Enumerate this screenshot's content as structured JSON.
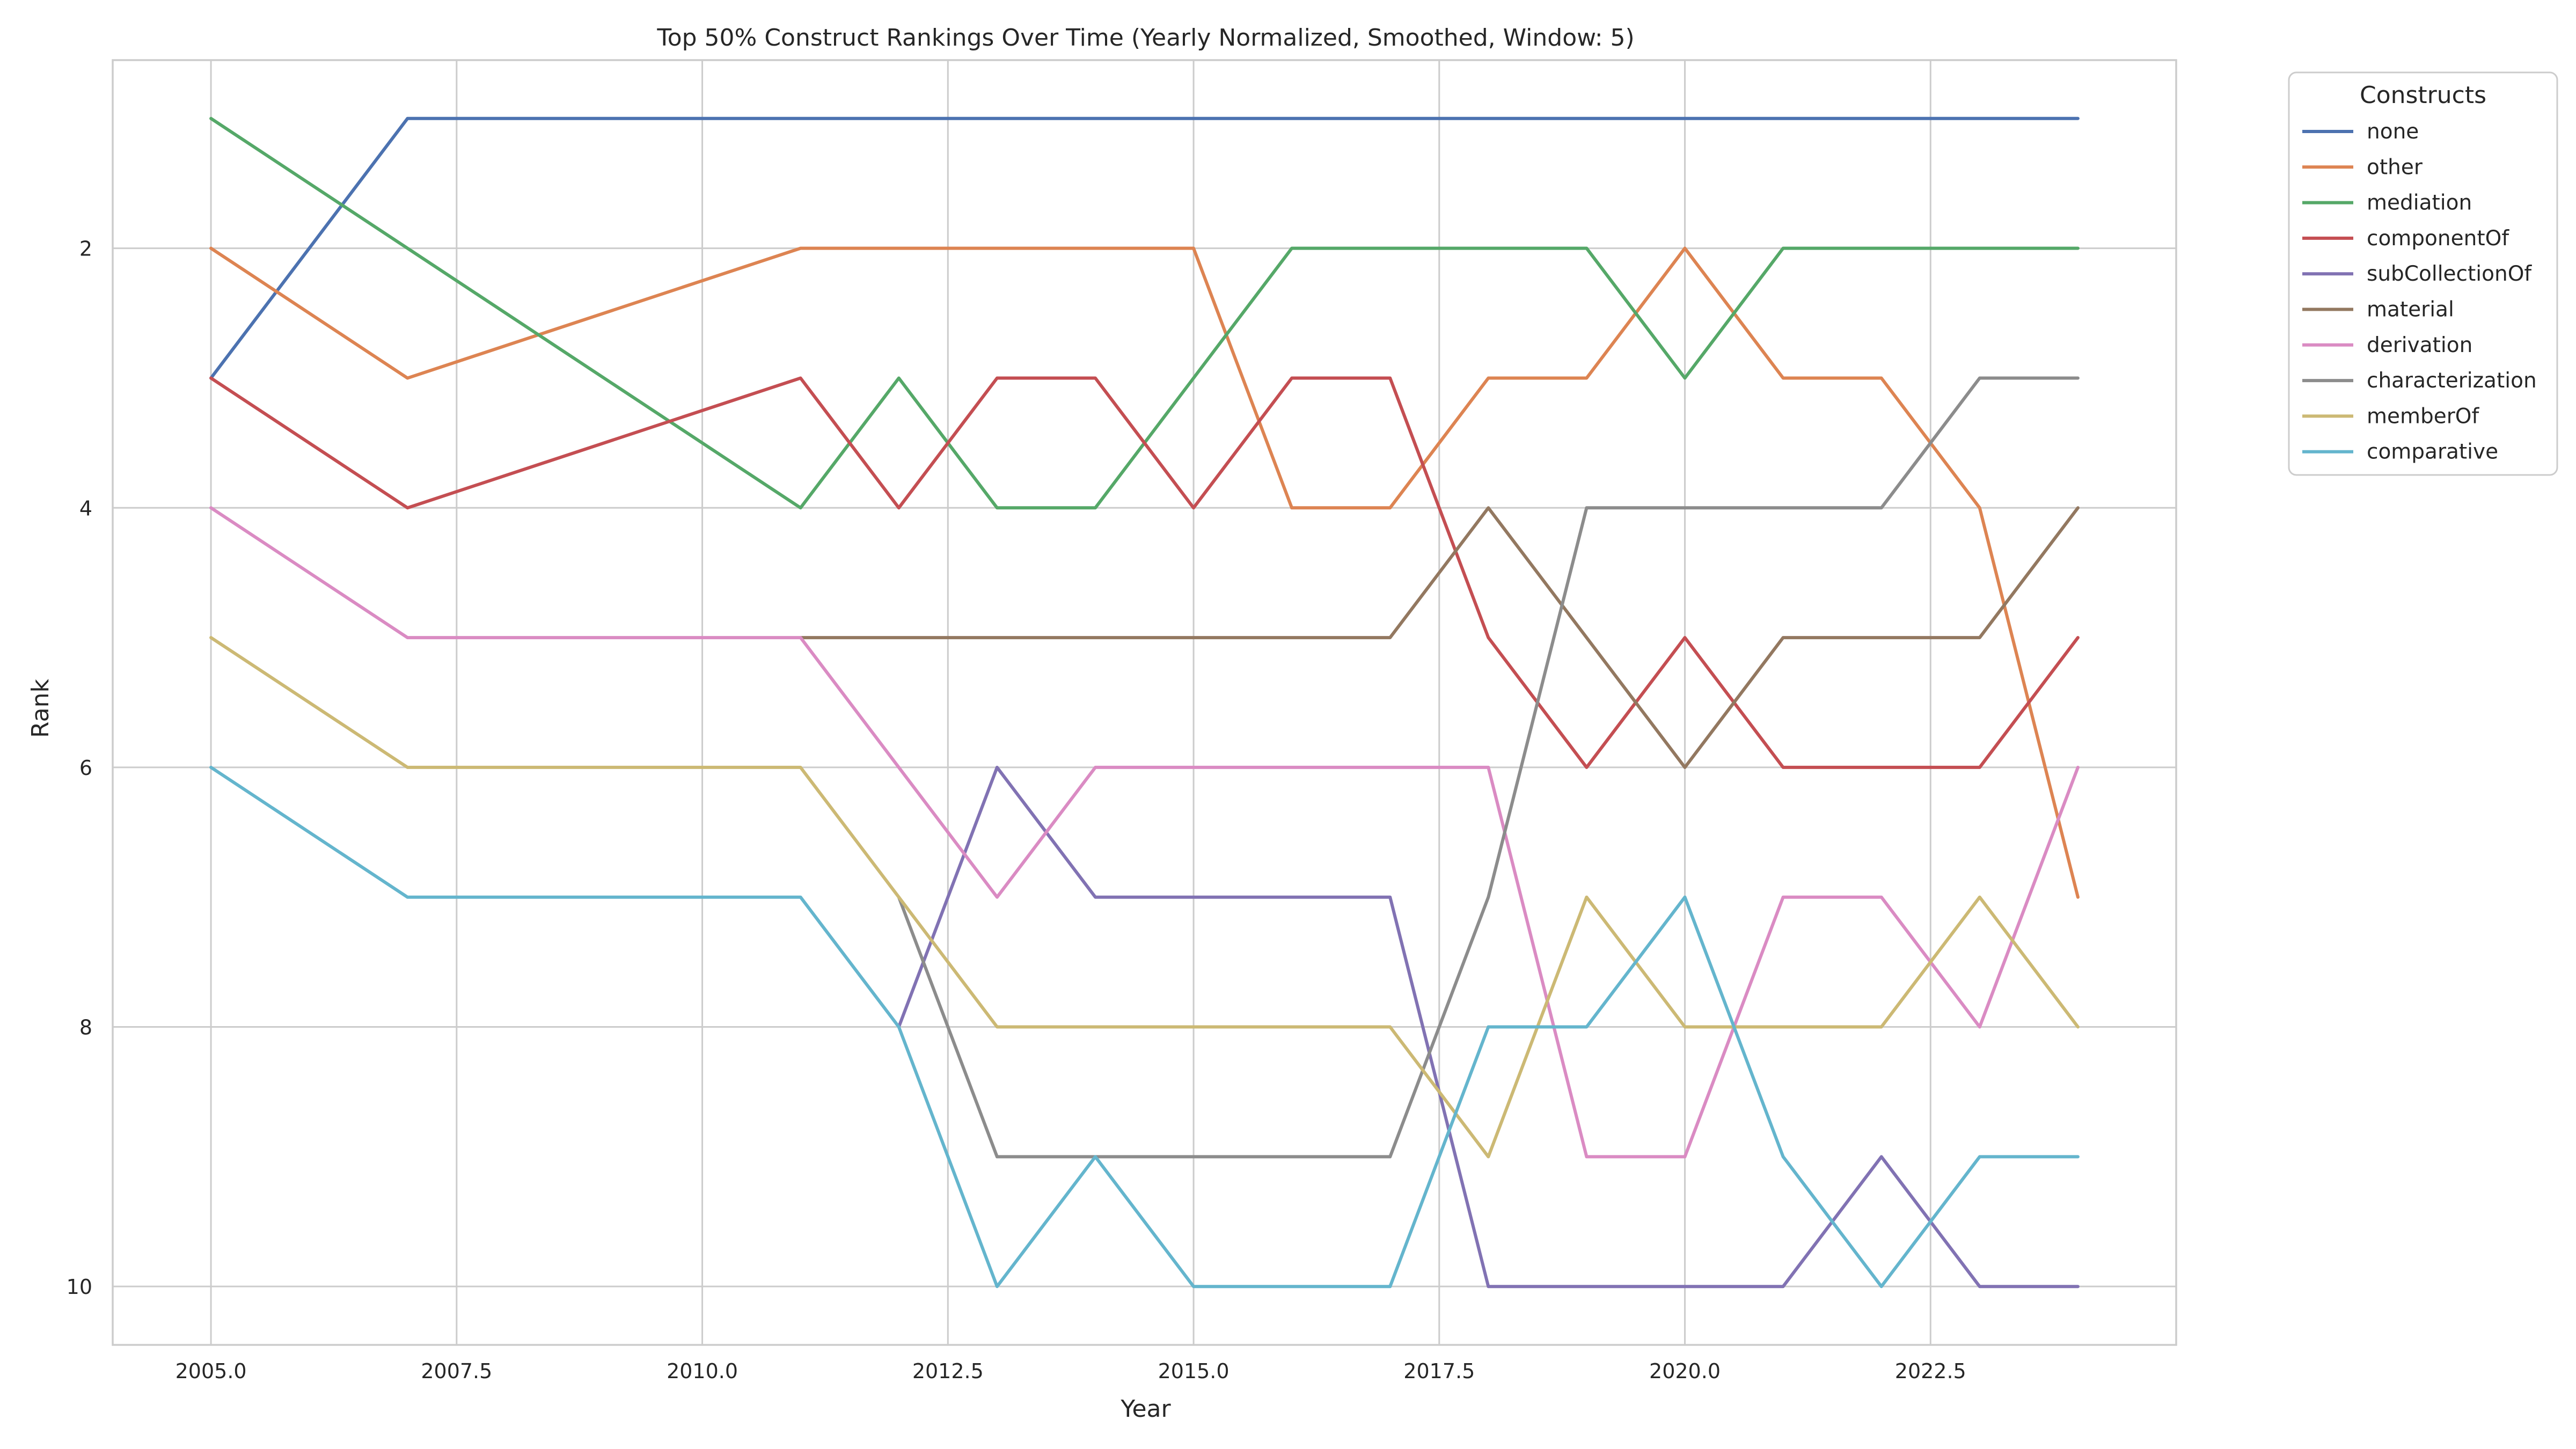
{
  "chart_data": {
    "type": "line",
    "title": "Top 50% Construct Rankings Over Time (Yearly Normalized, Smoothed, Window: 5)",
    "xlabel": "Year",
    "ylabel": "Rank",
    "xlim": [
      2004.0,
      2025.0
    ],
    "ylim": [
      10.45,
      0.55
    ],
    "y_inverted": true,
    "grid": true,
    "legend_position": "outside-top-right",
    "legend_title": "Constructs",
    "x_ticks": [
      2005.0,
      2007.5,
      2010.0,
      2012.5,
      2015.0,
      2017.5,
      2020.0,
      2022.5
    ],
    "x_tick_labels": [
      "2005.0",
      "2007.5",
      "2010.0",
      "2012.5",
      "2015.0",
      "2017.5",
      "2020.0",
      "2022.5"
    ],
    "y_ticks": [
      2,
      4,
      6,
      8,
      10
    ],
    "y_tick_labels": [
      "2",
      "4",
      "6",
      "8",
      "10"
    ],
    "x": [
      2005,
      2007,
      2011,
      2012,
      2013,
      2014,
      2015,
      2016,
      2017,
      2018,
      2019,
      2020,
      2021,
      2022,
      2023,
      2024
    ],
    "series": [
      {
        "name": "none",
        "color": "#4c72b0",
        "values": [
          3,
          1,
          1,
          1,
          1,
          1,
          1,
          1,
          1,
          1,
          1,
          1,
          1,
          1,
          1,
          1
        ]
      },
      {
        "name": "other",
        "color": "#dd8452",
        "values": [
          2,
          3,
          2,
          2,
          2,
          2,
          2,
          4,
          4,
          3,
          3,
          2,
          3,
          3,
          4,
          7
        ]
      },
      {
        "name": "mediation",
        "color": "#55a868",
        "values": [
          1,
          2,
          4,
          3,
          4,
          4,
          3,
          2,
          2,
          2,
          2,
          3,
          2,
          2,
          2,
          2
        ]
      },
      {
        "name": "componentOf",
        "color": "#c44e52",
        "values": [
          3,
          4,
          3,
          4,
          3,
          3,
          4,
          3,
          3,
          5,
          6,
          5,
          6,
          6,
          6,
          5
        ]
      },
      {
        "name": "subCollectionOf",
        "color": "#8172b3",
        "values": [
          null,
          null,
          null,
          8,
          6,
          7,
          7,
          7,
          7,
          10,
          10,
          10,
          10,
          9,
          10,
          10
        ]
      },
      {
        "name": "material",
        "color": "#937860",
        "values": [
          null,
          null,
          5,
          5,
          5,
          5,
          5,
          5,
          5,
          4,
          5,
          6,
          5,
          5,
          5,
          4
        ]
      },
      {
        "name": "derivation",
        "color": "#da8bc3",
        "values": [
          4,
          5,
          5,
          6,
          7,
          6,
          6,
          6,
          6,
          6,
          9,
          9,
          7,
          7,
          8,
          6
        ]
      },
      {
        "name": "characterization",
        "color": "#8c8c8c",
        "values": [
          null,
          null,
          null,
          7,
          9,
          9,
          9,
          9,
          9,
          7,
          4,
          4,
          4,
          4,
          3,
          3
        ]
      },
      {
        "name": "memberOf",
        "color": "#ccb974",
        "values": [
          5,
          6,
          6,
          7,
          8,
          8,
          8,
          8,
          8,
          9,
          7,
          8,
          8,
          8,
          7,
          8
        ]
      },
      {
        "name": "comparative",
        "color": "#64b5cd",
        "values": [
          6,
          7,
          7,
          8,
          10,
          9,
          10,
          10,
          10,
          8,
          8,
          7,
          9,
          10,
          9,
          9
        ]
      }
    ]
  }
}
